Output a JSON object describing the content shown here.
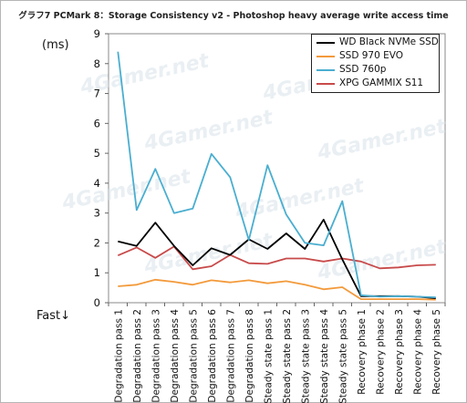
{
  "title": "グラフ7 PCMark 8：Storage Consistency v2 - Photoshop heavy average write access time",
  "unit_label": "(ms)",
  "fast_label": "Fast↓",
  "watermark_text": "4Gamer.net",
  "chart_data": {
    "type": "line",
    "title": "グラフ7 PCMark 8：Storage Consistency v2 - Photoshop heavy average write access time",
    "ylabel": "(ms)",
    "ylim": [
      0,
      9
    ],
    "yticks": [
      0,
      1,
      2,
      3,
      4,
      5,
      6,
      7,
      8,
      9
    ],
    "grid": false,
    "legend_position": "top-right",
    "categories": [
      "Degradation pass 1",
      "Degradation pass 2",
      "Degradation pass 3",
      "Degradation pass 4",
      "Degradation pass 5",
      "Degradation pass 6",
      "Degradation pass 7",
      "Degradation pass 8",
      "Steady state pass 1",
      "Steady state pass 2",
      "Steady state pass 3",
      "Steady state pass 4",
      "Steady state pass 5",
      "Recovery phase 1",
      "Recovery phase 2",
      "Recovery phase 3",
      "Recovery phase 4",
      "Recovery phase 5"
    ],
    "series": [
      {
        "name": "WD Black NVMe SSD",
        "color": "#000000",
        "values": [
          2.05,
          1.9,
          2.68,
          1.9,
          1.25,
          1.82,
          1.6,
          2.12,
          1.8,
          2.32,
          1.8,
          2.78,
          1.45,
          0.22,
          0.22,
          0.22,
          0.2,
          0.15
        ]
      },
      {
        "name": "SSD 970 EVO",
        "color": "#f39a3b",
        "values": [
          0.55,
          0.6,
          0.77,
          0.7,
          0.6,
          0.75,
          0.68,
          0.75,
          0.65,
          0.72,
          0.6,
          0.45,
          0.52,
          0.12,
          0.12,
          0.12,
          0.12,
          0.1
        ]
      },
      {
        "name": "SSD 760p",
        "color": "#4aaed0",
        "values": [
          8.4,
          3.1,
          4.48,
          3.0,
          3.15,
          4.98,
          4.2,
          2.1,
          4.6,
          2.95,
          2.0,
          1.92,
          3.4,
          0.25,
          0.2,
          0.22,
          0.2,
          0.18
        ]
      },
      {
        "name": "XPG GAMMIX S11",
        "color": "#c84a4a",
        "values": [
          1.58,
          1.85,
          1.5,
          1.88,
          1.12,
          1.22,
          1.6,
          1.32,
          1.3,
          1.48,
          1.48,
          1.38,
          1.48,
          1.38,
          1.15,
          1.18,
          1.25,
          1.27
        ]
      }
    ]
  }
}
